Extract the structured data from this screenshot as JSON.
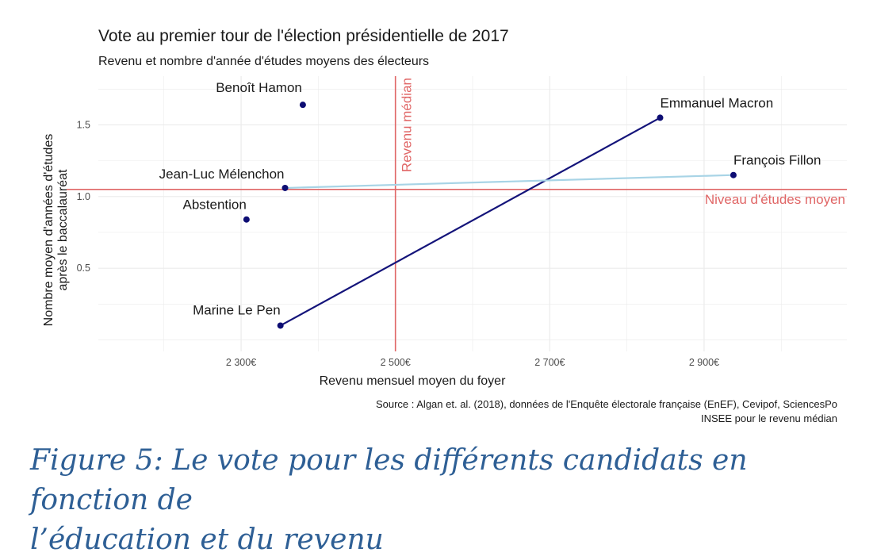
{
  "chart_data": {
    "type": "scatter",
    "title": "Vote au premier tour de l'élection présidentielle de 2017",
    "subtitle": "Revenu et nombre d'année d'études moyens des électeurs",
    "xlabel": "Revenu mensuel moyen du foyer",
    "ylabel_line1": "Nombre moyen d'années d'études",
    "ylabel_line2": "après le baccalauréat",
    "xlim": [
      2115,
      3085
    ],
    "ylim": [
      -0.08,
      1.84
    ],
    "x_ticks": [
      {
        "value": 2300,
        "label": "2 300€"
      },
      {
        "value": 2500,
        "label": "2 500€"
      },
      {
        "value": 2700,
        "label": "2 700€"
      },
      {
        "value": 2900,
        "label": "2 900€"
      }
    ],
    "y_ticks": [
      {
        "value": 0.5,
        "label": "0.5"
      },
      {
        "value": 1.0,
        "label": "1.0"
      },
      {
        "value": 1.5,
        "label": "1.5"
      }
    ],
    "points": [
      {
        "name": "Benoît Hamon",
        "x": 2380,
        "y": 1.64
      },
      {
        "name": "Emmanuel Macron",
        "x": 2843,
        "y": 1.55
      },
      {
        "name": "François Fillon",
        "x": 2938,
        "y": 1.15
      },
      {
        "name": "Jean-Luc Mélenchon",
        "x": 2357,
        "y": 1.06
      },
      {
        "name": "Abstention",
        "x": 2307,
        "y": 0.84
      },
      {
        "name": "Marine Le Pen",
        "x": 2351,
        "y": 0.1
      }
    ],
    "segments": [
      {
        "from": "Marine Le Pen",
        "to": "Emmanuel Macron",
        "color": "#14147a"
      },
      {
        "from": "Jean-Luc Mélenchon",
        "to": "François Fillon",
        "color": "#a8d4e6"
      }
    ],
    "reference_lines": [
      {
        "axis": "x",
        "value": 2500,
        "label": "Revenu médian",
        "color": "#e06666"
      },
      {
        "axis": "y",
        "value": 1.05,
        "label": "Niveau d'études moyen",
        "color": "#e06666"
      }
    ],
    "source_line1": "Source : Algan et. al. (2018), données de l'Enquête électorale française (EnEF), Cevipof, SciencesPo",
    "source_line2": "INSEE pour le revenu médian"
  },
  "colors": {
    "point": "#0d0d73",
    "reference": "#e06666",
    "grid": "#ebebeb",
    "caption": "#2e5f95"
  },
  "caption": {
    "line1": "Figure 5: Le vote pour les différents candidats en fonction de",
    "line2": "l’éducation et du revenu"
  }
}
